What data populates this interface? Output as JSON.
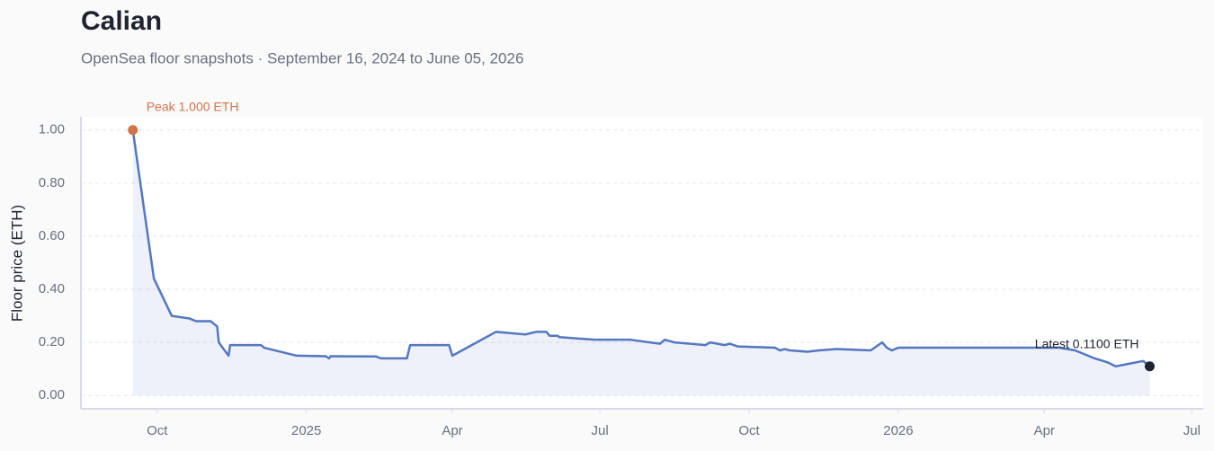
{
  "chart_data": {
    "type": "line",
    "title": "Calian",
    "subtitle": "OpenSea floor snapshots · September 16, 2024 to June 05, 2026",
    "y_label": "Floor price (ETH)",
    "x": [
      "2024-09-16",
      "2024-09-29",
      "2024-10-10",
      "2024-10-21",
      "2024-10-25",
      "2024-11-03",
      "2024-11-07",
      "2024-11-08",
      "2024-11-14",
      "2024-11-15",
      "2024-12-04",
      "2024-12-06",
      "2024-12-26",
      "2025-01-13",
      "2025-01-15",
      "2025-01-16",
      "2025-02-13",
      "2025-02-16",
      "2025-03-04",
      "2025-03-06",
      "2025-03-30",
      "2025-04-01",
      "2025-04-28",
      "2025-05-16",
      "2025-05-23",
      "2025-05-29",
      "2025-05-31",
      "2025-06-05",
      "2025-06-06",
      "2025-06-28",
      "2025-07-20",
      "2025-08-07",
      "2025-08-10",
      "2025-08-16",
      "2025-09-04",
      "2025-09-07",
      "2025-09-16",
      "2025-09-19",
      "2025-09-24",
      "2025-10-17",
      "2025-10-20",
      "2025-10-23",
      "2025-10-26",
      "2025-11-06",
      "2025-11-13",
      "2025-11-24",
      "2025-12-15",
      "2025-12-22",
      "2025-12-25",
      "2025-12-28",
      "2026-01-01",
      "2026-01-18",
      "2026-04-10",
      "2026-04-20",
      "2026-05-02",
      "2026-05-10",
      "2026-05-15",
      "2026-06-01",
      "2026-06-05"
    ],
    "series": [
      {
        "name": "Floor price",
        "color": "#5577c0",
        "values": [
          1.0,
          0.44,
          0.3,
          0.29,
          0.28,
          0.28,
          0.26,
          0.2,
          0.15,
          0.19,
          0.19,
          0.18,
          0.15,
          0.148,
          0.14,
          0.148,
          0.147,
          0.14,
          0.14,
          0.19,
          0.19,
          0.15,
          0.24,
          0.23,
          0.24,
          0.24,
          0.225,
          0.225,
          0.22,
          0.21,
          0.21,
          0.195,
          0.21,
          0.2,
          0.19,
          0.2,
          0.19,
          0.195,
          0.185,
          0.18,
          0.17,
          0.175,
          0.17,
          0.165,
          0.17,
          0.175,
          0.17,
          0.2,
          0.18,
          0.17,
          0.18,
          0.18,
          0.18,
          0.17,
          0.14,
          0.125,
          0.11,
          0.13,
          0.11
        ]
      }
    ],
    "annotations": [
      {
        "text": "Peak 1.000 ETH",
        "color": "#d4734a"
      },
      {
        "text": "Latest 0.1100 ETH",
        "color": "#1f2330"
      }
    ],
    "xlim": [
      "2024-08-15",
      "2026-07-08"
    ],
    "xticks": [
      {
        "value": "2024-10-01",
        "label": "Oct"
      },
      {
        "value": "2025-01-01",
        "label": "2025"
      },
      {
        "value": "2025-04-01",
        "label": "Apr"
      },
      {
        "value": "2025-07-01",
        "label": "Jul"
      },
      {
        "value": "2025-10-01",
        "label": "Oct"
      },
      {
        "value": "2026-01-01",
        "label": "2026"
      },
      {
        "value": "2026-04-01",
        "label": "Apr"
      },
      {
        "value": "2026-07-01",
        "label": "Jul"
      }
    ],
    "ylim": [
      -0.05,
      1.05
    ],
    "yticks": [
      {
        "value": 0,
        "label": "0.00"
      },
      {
        "value": 0.2,
        "label": "0.20"
      },
      {
        "value": 0.4,
        "label": "0.40"
      },
      {
        "value": 0.6,
        "label": "0.60"
      },
      {
        "value": 0.8,
        "label": "0.80"
      },
      {
        "value": 1,
        "label": "1.00"
      }
    ],
    "grid": true
  }
}
